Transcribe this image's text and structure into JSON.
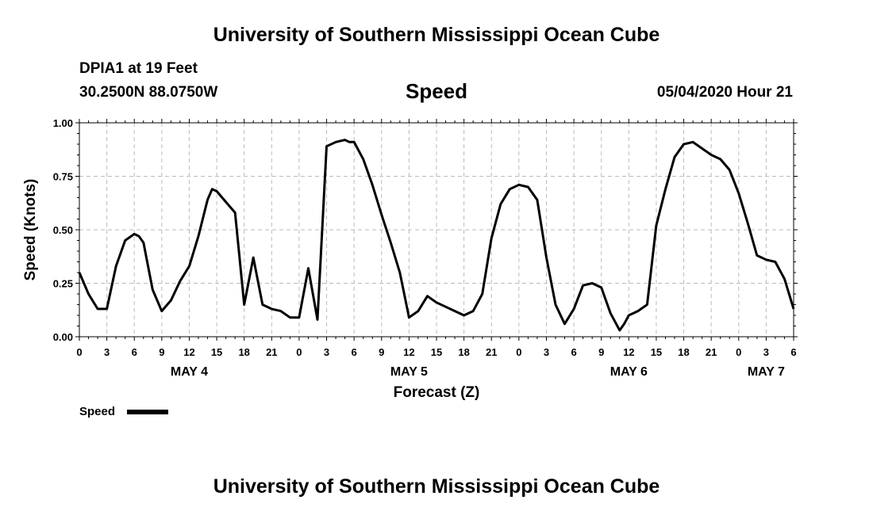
{
  "header": {
    "title": "University of Southern Mississippi Ocean Cube",
    "station": "DPIA1 at 19 Feet",
    "coordinates": "30.2500N 88.0750W",
    "datetime": "05/04/2020 Hour 21"
  },
  "footer": {
    "title": "University of Southern Mississippi Ocean Cube"
  },
  "colors": {
    "line": "#000000",
    "grid": "#bbbbbb",
    "background": "#ffffff"
  },
  "chart_data": {
    "type": "line",
    "title": "Speed",
    "xlabel": "Forecast (Z)",
    "ylabel": "Speed (Knots)",
    "ylim": [
      0,
      1
    ],
    "xlim": [
      0,
      78
    ],
    "x_unit": "hours since 00Z May 4",
    "yticks": [
      "0.00",
      "0.25",
      "0.50",
      "0.75",
      "1.00"
    ],
    "yticks_values": [
      0,
      0.25,
      0.5,
      0.75,
      1.0
    ],
    "xtick_labels": [
      "0",
      "3",
      "6",
      "9",
      "12",
      "15",
      "18",
      "21",
      "0",
      "3",
      "6",
      "9",
      "12",
      "15",
      "18",
      "21",
      "0",
      "3",
      "6",
      "9",
      "12",
      "15",
      "18",
      "21",
      "0",
      "3",
      "6"
    ],
    "day_labels": [
      {
        "label": "MAY 4",
        "hour": 12
      },
      {
        "label": "MAY 5",
        "hour": 36
      },
      {
        "label": "MAY 6",
        "hour": 60
      },
      {
        "label": "MAY 7",
        "hour": 75
      }
    ],
    "grid": true,
    "legend": "bottom-left",
    "series": [
      {
        "name": "Speed",
        "x": [
          0,
          1,
          2,
          2.5,
          3,
          4,
          5,
          6,
          6.5,
          7,
          8,
          9,
          10,
          11,
          12,
          13,
          14,
          14.5,
          15,
          16,
          17,
          18,
          19,
          20,
          21,
          22,
          23,
          24,
          25,
          26,
          27,
          28,
          29,
          29.5,
          30,
          31,
          32,
          33,
          34,
          35,
          36,
          37,
          38,
          39,
          40,
          41,
          42,
          43,
          44,
          45,
          46,
          47,
          48,
          49,
          50,
          51,
          52,
          53,
          54,
          55,
          56,
          57,
          58,
          59,
          59.5,
          60,
          61,
          62,
          63,
          64,
          65,
          66,
          67,
          68,
          69,
          70,
          71,
          72,
          73,
          74,
          75,
          76,
          77,
          78
        ],
        "values": [
          0.3,
          0.2,
          0.13,
          0.13,
          0.13,
          0.33,
          0.45,
          0.48,
          0.47,
          0.44,
          0.22,
          0.12,
          0.17,
          0.26,
          0.33,
          0.47,
          0.64,
          0.69,
          0.68,
          0.63,
          0.58,
          0.15,
          0.37,
          0.15,
          0.13,
          0.12,
          0.09,
          0.09,
          0.32,
          0.08,
          0.89,
          0.91,
          0.92,
          0.91,
          0.91,
          0.83,
          0.71,
          0.57,
          0.44,
          0.3,
          0.09,
          0.12,
          0.19,
          0.16,
          0.14,
          0.12,
          0.1,
          0.12,
          0.2,
          0.46,
          0.62,
          0.69,
          0.71,
          0.7,
          0.64,
          0.37,
          0.15,
          0.06,
          0.13,
          0.24,
          0.25,
          0.23,
          0.11,
          0.03,
          0.06,
          0.1,
          0.12,
          0.15,
          0.52,
          0.69,
          0.84,
          0.9,
          0.91,
          0.88,
          0.85,
          0.83,
          0.78,
          0.67,
          0.53,
          0.38,
          0.36,
          0.35,
          0.27,
          0.13
        ]
      }
    ]
  }
}
